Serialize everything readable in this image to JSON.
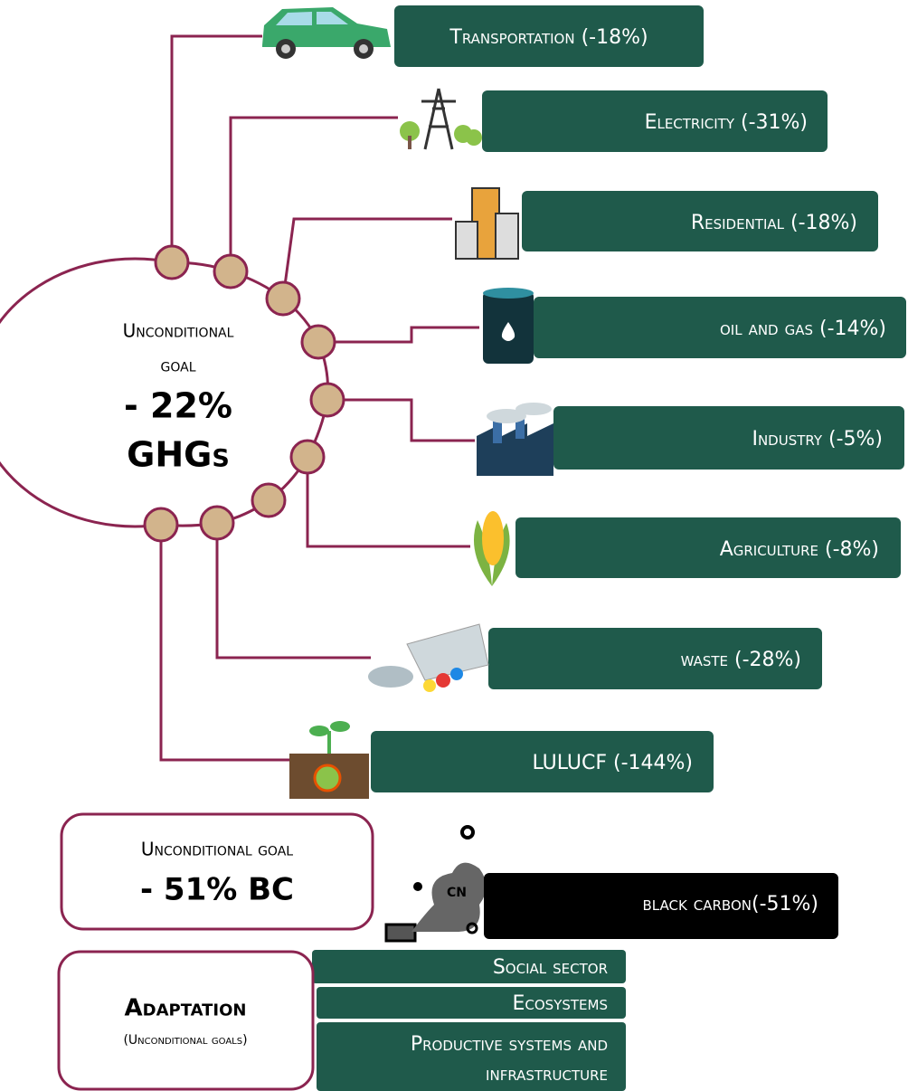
{
  "ghg_goal": {
    "line1": "Unconditional",
    "line2": "goal",
    "value": "- 22%",
    "unit": "GHGs"
  },
  "sectors": [
    {
      "label": "Transportation (-18%)"
    },
    {
      "label": "Electricity (-31%)"
    },
    {
      "label": "Residential (-18%)"
    },
    {
      "label": "oil and gas (-14%)"
    },
    {
      "label": "Industry (-5%)"
    },
    {
      "label": "Agriculture (-8%)"
    },
    {
      "label": "waste (-28%)"
    },
    {
      "label": "LULUCF (-144%)"
    }
  ],
  "black_carbon": {
    "goal_label": "Unconditional goal",
    "goal_value": "- 51% BC",
    "icon_text": "CN",
    "label": "black carbon(-51%)"
  },
  "adaptation": {
    "title": "Adaptation",
    "subtitle": "(Unconditional goals)",
    "items": [
      "Social sector",
      "Ecosystems",
      "Productive systems and",
      "infrastructure"
    ]
  }
}
